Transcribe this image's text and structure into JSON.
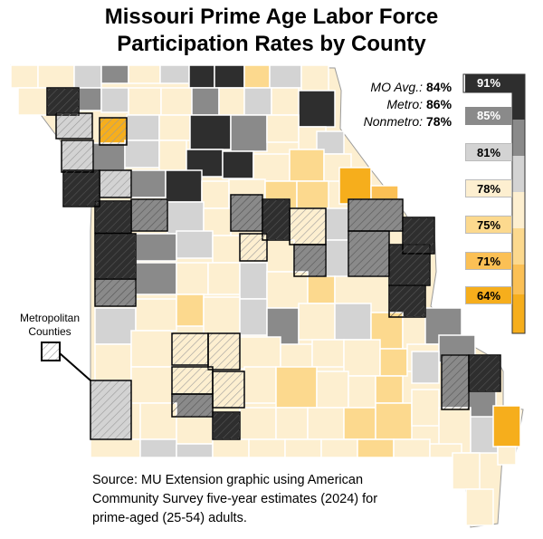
{
  "title": {
    "line1": "Missouri Prime Age Labor Force",
    "line2": "Participation Rates by County"
  },
  "stats": [
    {
      "label": "MO Avg.:",
      "value": "84%"
    },
    {
      "label": "Metro:",
      "value": "86%"
    },
    {
      "label": "Nonmetro:",
      "value": "78%"
    }
  ],
  "legend": [
    {
      "label": "91%",
      "color": "#2e2e2e",
      "text_color": "#ffffff"
    },
    {
      "label": "85%",
      "color": "#8a8a8a",
      "text_color": "#ffffff"
    },
    {
      "label": "81%",
      "color": "#d3d3d3",
      "text_color": "#000000"
    },
    {
      "label": "78%",
      "color": "#fdefd0",
      "text_color": "#000000"
    },
    {
      "label": "75%",
      "color": "#fcd98e",
      "text_color": "#000000"
    },
    {
      "label": "71%",
      "color": "#fbc055",
      "text_color": "#000000"
    },
    {
      "label": "64%",
      "color": "#f6ae1c",
      "text_color": "#000000"
    }
  ],
  "metro_label": {
    "line1": "Metropolitan",
    "line2": "Counties"
  },
  "source": "Source: MU Extension graphic using American Community Survey five-year estimates (2024) for prime-aged (25-54) adults."
}
